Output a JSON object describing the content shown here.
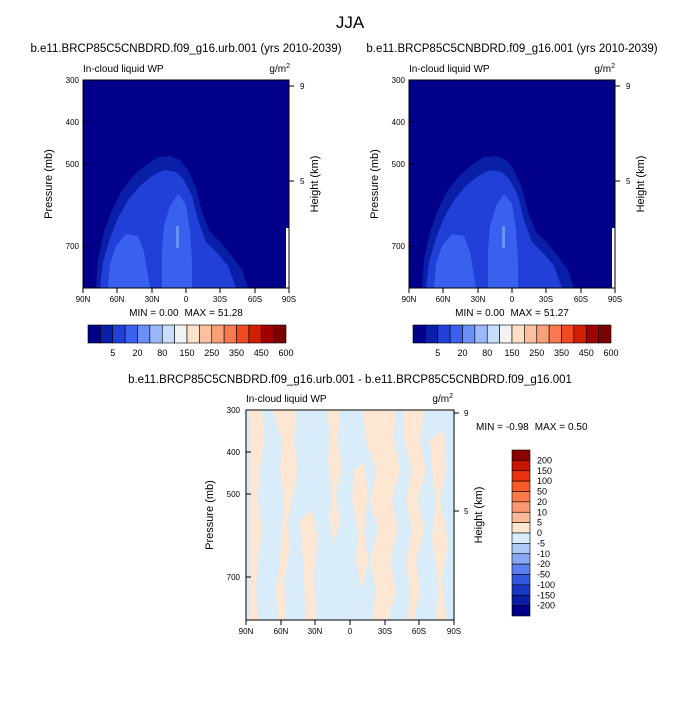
{
  "figure": {
    "title": "JJA"
  },
  "chart_data": [
    {
      "type": "heatmap",
      "title": "b.e11.BRCP85C5CNBDRD.f09_g16.urb.001 (yrs 2010-2039)",
      "left_subtitle": "In-cloud liquid WP",
      "units_base": "g/m",
      "units_exp": "2",
      "ylabel": "Pressure (mb)",
      "ylabel_right": "Height (km)",
      "x_ticks": [
        "90N",
        "60N",
        "30N",
        "0",
        "30S",
        "60S",
        "90S"
      ],
      "y_ticks": [
        "300",
        "400",
        "500",
        "700"
      ],
      "y_ticks_right": [
        "9",
        "5"
      ],
      "stats": {
        "min_label": "MIN =",
        "min": "0.00",
        "max_label": "MAX =",
        "max": "51.28"
      },
      "levels": [
        "5",
        "20",
        "80",
        "150",
        "250",
        "350",
        "450",
        "600"
      ],
      "colors": [
        "#00008b",
        "#0a1fa8",
        "#2040d8",
        "#3a60f0",
        "#6a90f8",
        "#9ab8fa",
        "#c8dcfb",
        "#f2f2f2",
        "#fde0c8",
        "#fcc0a0",
        "#faa078",
        "#f87850",
        "#f04820",
        "#d02000",
        "#a00000",
        "#7a0000"
      ]
    },
    {
      "type": "heatmap",
      "title": "b.e11.BRCP85C5CNBDRD.f09_g16.001 (yrs 2010-2039)",
      "left_subtitle": "In-cloud liquid WP",
      "units_base": "g/m",
      "units_exp": "2",
      "ylabel": "Pressure (mb)",
      "ylabel_right": "Height (km)",
      "x_ticks": [
        "90N",
        "60N",
        "30N",
        "0",
        "30S",
        "60S",
        "90S"
      ],
      "y_ticks": [
        "300",
        "400",
        "500",
        "700"
      ],
      "y_ticks_right": [
        "9",
        "5"
      ],
      "stats": {
        "min_label": "MIN =",
        "min": "0.00",
        "max_label": "MAX =",
        "max": "51.27"
      },
      "levels": [
        "5",
        "20",
        "80",
        "150",
        "250",
        "350",
        "450",
        "600"
      ],
      "colors": [
        "#00008b",
        "#0a1fa8",
        "#2040d8",
        "#3a60f0",
        "#6a90f8",
        "#9ab8fa",
        "#c8dcfb",
        "#f2f2f2",
        "#fde0c8",
        "#fcc0a0",
        "#faa078",
        "#f87850",
        "#f04820",
        "#d02000",
        "#a00000",
        "#7a0000"
      ]
    },
    {
      "type": "heatmap",
      "title": "b.e11.BRCP85C5CNBDRD.f09_g16.urb.001 - b.e11.BRCP85C5CNBDRD.f09_g16.001",
      "left_subtitle": "In-cloud liquid WP",
      "units_base": "g/m",
      "units_exp": "2",
      "ylabel": "Pressure (mb)",
      "ylabel_right": "Height (km)",
      "x_ticks": [
        "90N",
        "60N",
        "30N",
        "0",
        "30S",
        "60S",
        "90S"
      ],
      "y_ticks": [
        "300",
        "400",
        "500",
        "700"
      ],
      "y_ticks_right": [
        "9",
        "5"
      ],
      "stats": {
        "min_label": "MIN =",
        "min": "-0.98",
        "max_label": "MAX =",
        "max": "0.50"
      },
      "levels": [
        "200",
        "150",
        "100",
        "50",
        "20",
        "10",
        "5",
        "0",
        "-5",
        "-10",
        "-20",
        "-50",
        "-100",
        "-150",
        "-200"
      ],
      "colors": [
        "#8b0000",
        "#c81400",
        "#e83210",
        "#f85a28",
        "#fa7a48",
        "#fb9a70",
        "#fcba98",
        "#fde6d2",
        "#d8ecfa",
        "#b0c8f8",
        "#88a8f4",
        "#5a80f0",
        "#3058e0",
        "#1838c8",
        "#0a1ea8",
        "#00008b"
      ]
    }
  ]
}
